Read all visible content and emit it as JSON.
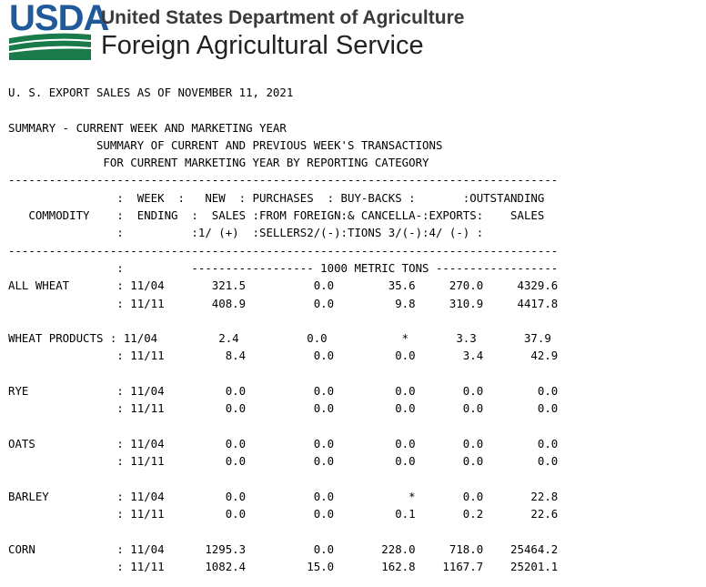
{
  "header": {
    "logo_text": "USDA",
    "agency_line1": "United States Department of Agriculture",
    "agency_line2": "Foreign Agricultural Service",
    "colors": {
      "logo_blue": "#215a9a",
      "logo_green": "#1a7a4a"
    }
  },
  "report": {
    "lines": [
      "U. S. EXPORT SALES AS OF NOVEMBER 11, 2021",
      "",
      "SUMMARY - CURRENT WEEK AND MARKETING YEAR",
      "             SUMMARY OF CURRENT AND PREVIOUS WEEK'S TRANSACTIONS",
      "              FOR CURRENT MARKETING YEAR BY REPORTING CATEGORY",
      "---------------------------------------------------------------------------------",
      "                :  WEEK  :   NEW  : PURCHASES  : BUY-BACKS :       :OUTSTANDING",
      "   COMMODITY    :  ENDING  :  SALES :FROM FOREIGN:& CANCELLA-:EXPORTS:    SALES",
      "                :          :1/ (+)  :SELLERS2/(-):TIONS 3/(-):4/ (-) :",
      "---------------------------------------------------------------------------------",
      "                :          ------------------ 1000 METRIC TONS ------------------",
      "ALL WHEAT       : 11/04       321.5          0.0        35.6     270.0     4329.6",
      "                : 11/11       408.9          0.0         9.8     310.9     4417.8",
      "",
      "WHEAT PRODUCTS : 11/04         2.4          0.0           *       3.3       37.9",
      "                : 11/11         8.4          0.0         0.0       3.4       42.9",
      "",
      "RYE             : 11/04         0.0          0.0         0.0       0.0        0.0",
      "                : 11/11         0.0          0.0         0.0       0.0        0.0",
      "",
      "OATS            : 11/04         0.0          0.0         0.0       0.0        0.0",
      "                : 11/11         0.0          0.0         0.0       0.0        0.0",
      "",
      "BARLEY          : 11/04         0.0          0.0           *       0.0       22.8",
      "                : 11/11         0.0          0.0         0.1       0.2       22.6",
      "",
      "CORN            : 11/04      1295.3          0.0       228.0     718.0    25464.2",
      "                : 11/11      1082.4         15.0       162.8    1167.7    25201.1"
    ]
  }
}
